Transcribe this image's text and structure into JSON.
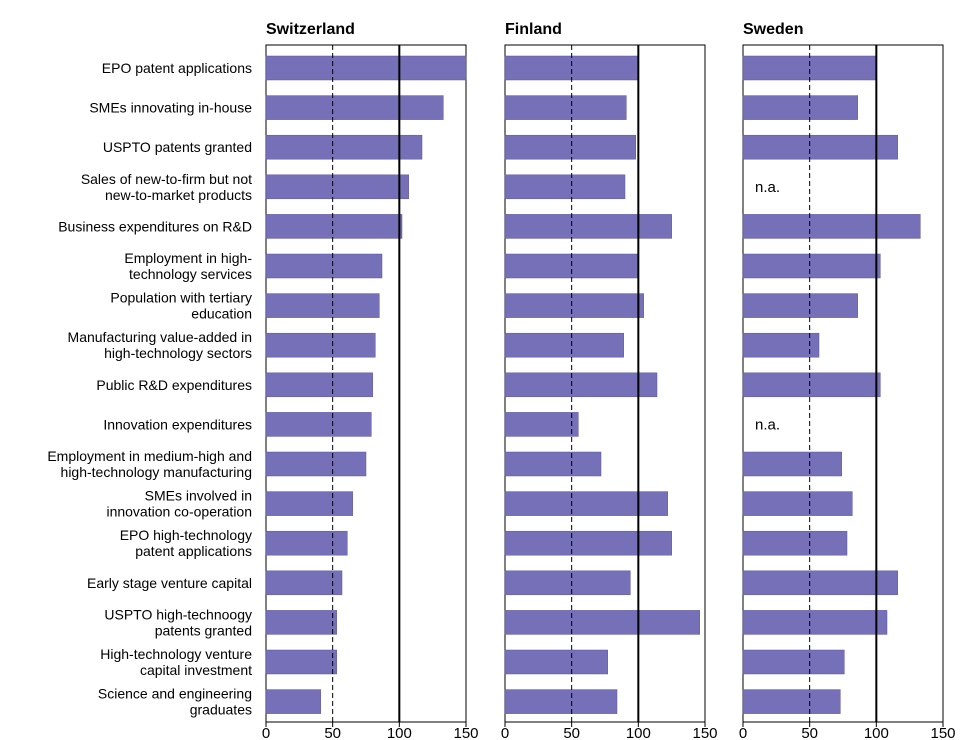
{
  "colors": {
    "bar": "#7570b7",
    "bar_stroke": "#5b56a0",
    "axis": "#000000",
    "background": "#ffffff"
  },
  "chart_data": {
    "type": "bar",
    "orientation": "horizontal",
    "categories": [
      [
        "EPO patent applications"
      ],
      [
        "SMEs innovating in-house"
      ],
      [
        "USPTO patents granted"
      ],
      [
        "Sales of new-to-firm but not",
        "new-to-market products"
      ],
      [
        "Business expenditures on R&D"
      ],
      [
        "Employment in high-",
        "technology services"
      ],
      [
        "Population with tertiary",
        "education"
      ],
      [
        "Manufacturing value-added in",
        "high-technology sectors"
      ],
      [
        "Public R&D expenditures"
      ],
      [
        "Innovation expenditures"
      ],
      [
        "Employment in medium-high and",
        "high-technology manufacturing"
      ],
      [
        "SMEs involved in",
        "innovation co-operation"
      ],
      [
        "EPO high-technology",
        "patent applications"
      ],
      [
        "Early stage venture capital"
      ],
      [
        "USPTO high-technoogy",
        "patents granted"
      ],
      [
        "High-technology venture",
        "capital investment"
      ],
      [
        "Science and engineering",
        "graduates"
      ]
    ],
    "xlim": [
      0,
      150
    ],
    "xticks": [
      "0",
      "50",
      "100",
      "150"
    ],
    "reference_lines": [
      {
        "value": 50,
        "style": "dashed"
      },
      {
        "value": 100,
        "style": "solid"
      }
    ],
    "na_text": "n.a.",
    "panels": [
      {
        "title": "Switzerland",
        "values": [
          150,
          133,
          117,
          107,
          102,
          87,
          85,
          82,
          80,
          79,
          75,
          65,
          61,
          57,
          53,
          53,
          41
        ]
      },
      {
        "title": "Finland",
        "values": [
          100,
          91,
          98,
          90,
          125,
          100,
          104,
          89,
          114,
          55,
          72,
          122,
          125,
          94,
          146,
          77,
          84
        ]
      },
      {
        "title": "Sweden",
        "values": [
          100,
          86,
          116,
          null,
          133,
          103,
          86,
          57,
          103,
          null,
          74,
          82,
          78,
          116,
          108,
          76,
          73
        ]
      }
    ]
  }
}
